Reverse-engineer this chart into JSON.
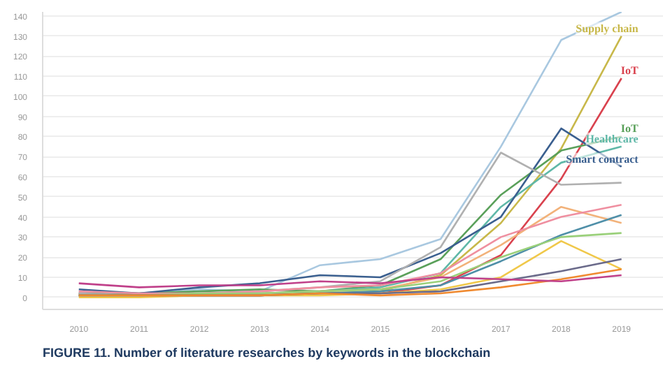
{
  "chart_data": {
    "type": "line",
    "x": [
      2010,
      2011,
      2012,
      2013,
      2014,
      2015,
      2016,
      2017,
      2018,
      2019
    ],
    "xlim": [
      2009.4,
      2019.7
    ],
    "xticks": [
      2010,
      2011,
      2012,
      2013,
      2014,
      2015,
      2016,
      2017,
      2018,
      2019
    ],
    "ylim": [
      -6,
      142
    ],
    "yticks": [
      0,
      10,
      20,
      30,
      40,
      50,
      60,
      70,
      80,
      90,
      100,
      110,
      120,
      130,
      140
    ],
    "grid": "y",
    "legend": false,
    "series": [
      {
        "color": "#a9c8e0",
        "values": [
          3,
          2,
          4,
          3,
          16,
          19,
          29,
          75,
          128,
          142
        ]
      },
      {
        "name": "Supply chain",
        "color": "#c8b84a",
        "values": [
          1,
          1,
          1,
          1,
          2,
          3,
          11,
          37,
          74,
          130
        ]
      },
      {
        "name": "IoT",
        "color": "#d9424e",
        "values": [
          2,
          1,
          1,
          1,
          2,
          2,
          6,
          21,
          59,
          109
        ]
      },
      {
        "name": "IoT",
        "color": "#5aa05a",
        "values": [
          2,
          2,
          3,
          4,
          3,
          6,
          19,
          51,
          73,
          80
        ]
      },
      {
        "name": "Healthcare",
        "color": "#5fb8a8",
        "values": [
          1,
          1,
          2,
          2,
          3,
          5,
          12,
          45,
          67,
          75
        ]
      },
      {
        "name": "Smart contract",
        "color": "#3a5f8f",
        "values": [
          4,
          2,
          5,
          7,
          11,
          10,
          22,
          40,
          84,
          65
        ]
      },
      {
        "color": "#b0b0b0",
        "values": [
          2,
          1,
          2,
          3,
          5,
          8,
          25,
          72,
          56,
          57
        ]
      },
      {
        "color": "#f2b27a",
        "values": [
          1,
          1,
          1,
          2,
          3,
          4,
          10,
          26,
          45,
          37
        ]
      },
      {
        "color": "#ef8fa0",
        "values": [
          3,
          2,
          2,
          3,
          5,
          6,
          12,
          30,
          40,
          46
        ]
      },
      {
        "color": "#4f8fa8",
        "values": [
          1,
          1,
          1,
          1,
          2,
          3,
          6,
          18,
          31,
          41
        ]
      },
      {
        "color": "#9ad07a",
        "values": [
          1,
          1,
          2,
          2,
          3,
          4,
          8,
          20,
          30,
          32
        ]
      },
      {
        "color": "#f0c84a",
        "values": [
          0,
          0,
          1,
          1,
          1,
          2,
          4,
          10,
          28,
          14
        ]
      },
      {
        "color": "#6a6a8a",
        "values": [
          1,
          1,
          1,
          1,
          2,
          2,
          3,
          8,
          13,
          19
        ]
      },
      {
        "color": "#f08a30",
        "values": [
          1,
          1,
          1,
          1,
          2,
          1,
          2,
          5,
          9,
          14
        ]
      },
      {
        "color": "#c0408a",
        "values": [
          7,
          5,
          6,
          6,
          8,
          7,
          10,
          9,
          8,
          11
        ]
      }
    ],
    "annotations": [
      "FIGURE 11. Number of literature researches by keywords in the blockchain"
    ]
  }
}
